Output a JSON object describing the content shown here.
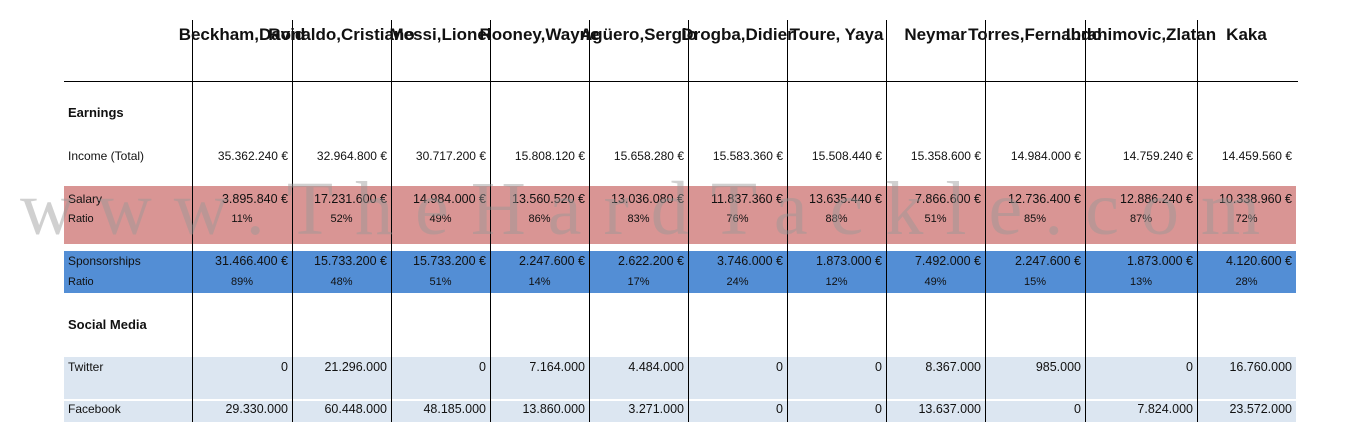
{
  "columns": [
    {
      "line1": "Beckham,",
      "line2": "David"
    },
    {
      "line1": "Ronaldo,",
      "line2": "Cristiano"
    },
    {
      "line1": "Messi,",
      "line2": "Lionel"
    },
    {
      "line1": "Rooney,",
      "line2": "Wayne"
    },
    {
      "line1": "Agüero,",
      "line2": "Sergio"
    },
    {
      "line1": "Drogba,",
      "line2": "Didier"
    },
    {
      "line1": "Toure, Yaya",
      "line2": ""
    },
    {
      "line1": "Neymar",
      "line2": ""
    },
    {
      "line1": "Torres,",
      "line2": "Fernando"
    },
    {
      "line1": "Ibrahimovic,",
      "line2": "Zlatan"
    },
    {
      "line1": "Kaka",
      "line2": ""
    }
  ],
  "sections": {
    "earnings": "Earnings",
    "social_media": "Social Media"
  },
  "rows": {
    "income": {
      "label": "Income (Total)",
      "values": [
        "35.362.240 €",
        "32.964.800 €",
        "30.717.200 €",
        "15.808.120 €",
        "15.658.280 €",
        "15.583.360 €",
        "15.508.440 €",
        "15.358.600 €",
        "14.984.000 €",
        "14.759.240 €",
        "14.459.560 €"
      ]
    },
    "salary": {
      "label": "Salary",
      "values": [
        "3.895.840 €",
        "17.231.600 €",
        "14.984.000 €",
        "13.560.520 €",
        "13.036.080 €",
        "11.837.360 €",
        "13.635.440 €",
        "7.866.600 €",
        "12.736.400 €",
        "12.886.240 €",
        "10.338.960 €"
      ]
    },
    "salary_ratio": {
      "label": "Ratio",
      "values": [
        "11%",
        "52%",
        "49%",
        "86%",
        "83%",
        "76%",
        "88%",
        "51%",
        "85%",
        "87%",
        "72%"
      ]
    },
    "sponsorships": {
      "label": "Sponsorships",
      "values": [
        "31.466.400 €",
        "15.733.200 €",
        "15.733.200 €",
        "2.247.600 €",
        "2.622.200 €",
        "3.746.000 €",
        "1.873.000 €",
        "7.492.000 €",
        "2.247.600 €",
        "1.873.000 €",
        "4.120.600 €"
      ]
    },
    "spons_ratio": {
      "label": "Ratio",
      "values": [
        "89%",
        "48%",
        "51%",
        "14%",
        "17%",
        "24%",
        "12%",
        "49%",
        "15%",
        "13%",
        "28%"
      ]
    },
    "twitter": {
      "label": "Twitter",
      "values": [
        "0",
        "21.296.000",
        "0",
        "7.164.000",
        "4.484.000",
        "0",
        "0",
        "8.367.000",
        "985.000",
        "0",
        "16.760.000"
      ]
    },
    "facebook": {
      "label": "Facebook",
      "values": [
        "29.330.000",
        "60.448.000",
        "48.185.000",
        "13.860.000",
        "3.271.000",
        "0",
        "0",
        "13.637.000",
        "0",
        "7.824.000",
        "23.572.000"
      ]
    }
  },
  "watermark": "www.TheHardTackle.com",
  "colors": {
    "salary_band": "#d99594",
    "sponsorship_band": "#538ed5",
    "social_band": "#dce6f1"
  }
}
